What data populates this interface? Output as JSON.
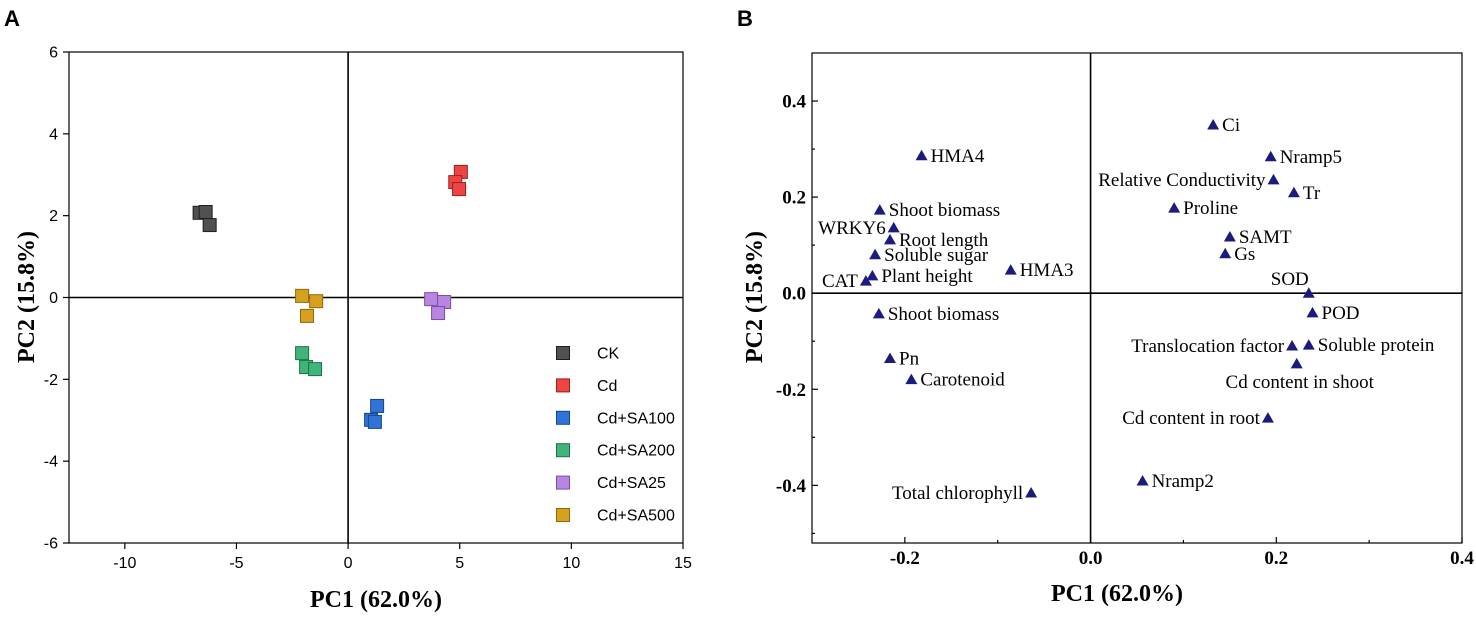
{
  "chart_data": [
    {
      "panel": "A",
      "type": "scatter",
      "xlabel": "PC1 (62.0%)",
      "ylabel": "PC2 (15.8%)",
      "xlim": [
        -12.5,
        15
      ],
      "ylim": [
        -6,
        6
      ],
      "xticks": [
        -10,
        -5,
        0,
        5,
        10,
        15
      ],
      "xtick_labels": [
        "-10",
        "-5",
        "0",
        "5",
        "10",
        "15"
      ],
      "yticks": [
        -6,
        -4,
        -2,
        0,
        2,
        4,
        6
      ],
      "ytick_labels": [
        "-6",
        "-4",
        "-2",
        "0",
        "2",
        "4",
        "6"
      ],
      "grid": false,
      "zero_lines": true,
      "legend": "bottom-right",
      "series": [
        {
          "name": "CK",
          "color": "#505050",
          "edge": "#1e1e1e",
          "points": [
            [
              -6.65,
              2.07
            ],
            [
              -6.38,
              2.09
            ],
            [
              -6.2,
              1.77
            ]
          ]
        },
        {
          "name": "Cd",
          "color": "#ee4444",
          "edge": "#9c1f1f",
          "points": [
            [
              5.05,
              3.07
            ],
            [
              4.8,
              2.82
            ],
            [
              4.97,
              2.65
            ]
          ]
        },
        {
          "name": "Cd+SA100",
          "color": "#2f74d6",
          "edge": "#17468f",
          "points": [
            [
              1.3,
              -2.65
            ],
            [
              1.03,
              -2.99
            ],
            [
              1.2,
              -3.04
            ]
          ]
        },
        {
          "name": "Cd+SA200",
          "color": "#3fb57b",
          "edge": "#1f7047",
          "points": [
            [
              -2.06,
              -1.36
            ],
            [
              -1.88,
              -1.7
            ],
            [
              -1.48,
              -1.75
            ]
          ]
        },
        {
          "name": "Cd+SA25",
          "color": "#b885e3",
          "edge": "#7a4fa8",
          "points": [
            [
              3.72,
              -0.04
            ],
            [
              4.3,
              -0.11
            ],
            [
              4.03,
              -0.38
            ]
          ]
        },
        {
          "name": "Cd+SA500",
          "color": "#d7a11d",
          "edge": "#8f6a0c",
          "points": [
            [
              -2.06,
              0.04
            ],
            [
              -1.43,
              -0.09
            ],
            [
              -1.84,
              -0.45
            ]
          ]
        }
      ]
    },
    {
      "panel": "B",
      "type": "scatter",
      "xlabel": "PC1 (62.0%)",
      "ylabel": "PC2 (15.8%)",
      "xlim": [
        -0.3,
        0.4
      ],
      "ylim": [
        -0.52,
        0.5
      ],
      "xticks": [
        -0.2,
        0.0,
        0.2,
        0.4
      ],
      "xtick_labels": [
        "-0.2",
        "0.0",
        "0.2",
        "0.4"
      ],
      "yticks": [
        -0.4,
        -0.2,
        0.0,
        0.2,
        0.4
      ],
      "ytick_labels": [
        "-0.4",
        "-0.2",
        "0.0",
        "0.2",
        "0.4"
      ],
      "grid": false,
      "zero_lines": true,
      "color": "#1b1b7d",
      "points": [
        {
          "label": "Ci",
          "x": 0.132,
          "y": 0.35
        },
        {
          "label": "Nramp5",
          "x": 0.194,
          "y": 0.284
        },
        {
          "label": "Relative Conductivity",
          "x": 0.197,
          "y": 0.236
        },
        {
          "label": "Tr",
          "x": 0.219,
          "y": 0.209
        },
        {
          "label": "Proline",
          "x": 0.09,
          "y": 0.177
        },
        {
          "label": "SAMT",
          "x": 0.15,
          "y": 0.117
        },
        {
          "label": "Gs",
          "x": 0.145,
          "y": 0.082
        },
        {
          "label": "SOD",
          "x": 0.235,
          "y": 0.0
        },
        {
          "label": "POD",
          "x": 0.239,
          "y": -0.041
        },
        {
          "label": "Translocation factor",
          "x": 0.217,
          "y": -0.11
        },
        {
          "label": "Soluble protein",
          "x": 0.235,
          "y": -0.108
        },
        {
          "label": "Cd content in shoot",
          "x": 0.222,
          "y": -0.147
        },
        {
          "label": "Cd content in root",
          "x": 0.191,
          "y": -0.26
        },
        {
          "label": "Nramp2",
          "x": 0.056,
          "y": -0.391
        },
        {
          "label": "Total chlorophyll",
          "x": -0.064,
          "y": -0.416
        },
        {
          "label": "HMA4",
          "x": -0.182,
          "y": 0.286
        },
        {
          "label": "Shoot biomass",
          "x": -0.227,
          "y": 0.173
        },
        {
          "label": "WRKY6",
          "x": -0.212,
          "y": 0.136
        },
        {
          "label": "Root length",
          "x": -0.216,
          "y": 0.111
        },
        {
          "label": "Soluble sugar",
          "x": -0.232,
          "y": 0.08
        },
        {
          "label": "CAT",
          "x": -0.242,
          "y": 0.025
        },
        {
          "label": "Plant height",
          "x": -0.235,
          "y": 0.036
        },
        {
          "label": "HMA3",
          "x": -0.086,
          "y": 0.048
        },
        {
          "label": "Shoot biomass",
          "x": -0.228,
          "y": -0.043
        },
        {
          "label": "Pn",
          "x": -0.216,
          "y": -0.136
        },
        {
          "label": "Carotenoid",
          "x": -0.193,
          "y": -0.18
        }
      ]
    }
  ]
}
